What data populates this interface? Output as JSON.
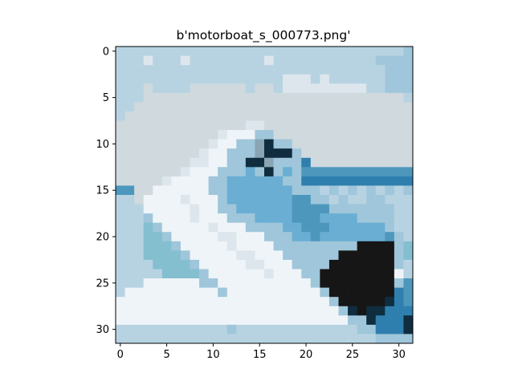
{
  "chart_data": {
    "type": "image",
    "title": "b'motorboat_s_000773.png'",
    "xlim": [
      -0.5,
      31.5
    ],
    "ylim": [
      31.5,
      -0.5
    ],
    "xticks": [
      0,
      5,
      10,
      15,
      20,
      25,
      30
    ],
    "yticks": [
      0,
      5,
      10,
      15,
      20,
      25,
      30
    ],
    "grid": false,
    "image": {
      "rows": 32,
      "cols": 32,
      "palette": {
        "s": "#b7d3e2",
        "w": "#cfd9de",
        "l": "#dde6ec",
        "b": "#4d97bd",
        "v": "#2f7fae",
        "h": "#eef4f8",
        "m": "#9fc6da",
        "c": "#6aaed3",
        "d": "#0f2d3f",
        "k": "#161616",
        "g": "#8aa4b3",
        "t": "#84bfd0"
      },
      "pixels": [
        "sssssssssssssssssssssssssssssssm",
        "ssslssslsssssssslsssssssssssmmmm",
        "sssssssssssssssssssssssssssssmmm",
        "sssssssssssssssssslllslssssssmmm",
        "ssswsssswwwwwwswwslllllllllssmmm",
        "ssswwwwwwwwwwwwwwwwwwwwwwwwwwwws",
        "sswwwwwwwwwwwwwwwwwwwwwwwwwwwwww",
        "swwwwwwwwwwwwwwwwwwwwwwwwwwwwwww",
        "wwwwwwwwwwwwwwllwwwwwwwwwwwwwwww",
        "wwwwwwwwwwwlhhhmmwwwwwwwwwwwwwww",
        "wwwwwwwwwwlhhmmgdmmwwwwwwwwwwwww",
        "wwwwwwwwwlhhmmmgdddmwwwwwwwwwwww",
        "wwwwwwwwllhhmmddgmmmvwwwwwwwwwww",
        "wwwwwwwlhhhmmmcmdmcmbbbbbbbbbbbb",
        "wwwwwlhhhhmmccccccmmvvvvvvvvvvvv",
        "bbwwhhhhhhmmcccccccmmmsmsmsmsmsm",
        "sswhhhhlhhhmcccccccbbmmsmssmmsss",
        "ssshhhhhlhhmmccccccbbbbmmmmmmmss",
        "sssmhhhhlhhhmmmccccbbbccccmmmmss",
        "ssstmhhhhhlhhhmmmmccbbbccccccmss",
        "sssttmhhhhhllhhhmmmccbcccccccbms",
        "ssstttmhhhhhlhhhhmmmmmmmmmkkkkmt",
        "sssttttmhhhhhllhhhmmmmmmkkkkkkmt",
        "ssssttttmhhhhhllhhhmmmmkkkkkkkms",
        "sssssttttmhhhhhhlhhhmmkkkkkkkkhs",
        "ssshhhhhhmmhhhhhhhhhhmkkkkkkkkmb",
        "shhhhhhhhhhmhhhhhhhhhhmkkkkkkkvb",
        "hhhhhhhhhhhhhhhhhhhhhhhmkkkkkdvb",
        "hhhhhhhhhhhhhhhhhhhhhhhhmdkddvvv",
        "hhhhhhhhhhhhhhhhhhhhhhhhhmmdvvvd",
        "ssssssssssssmsssssssssssssmmvvvd",
        "ssssssssssssssssssssssssssssmmmm"
      ]
    }
  }
}
